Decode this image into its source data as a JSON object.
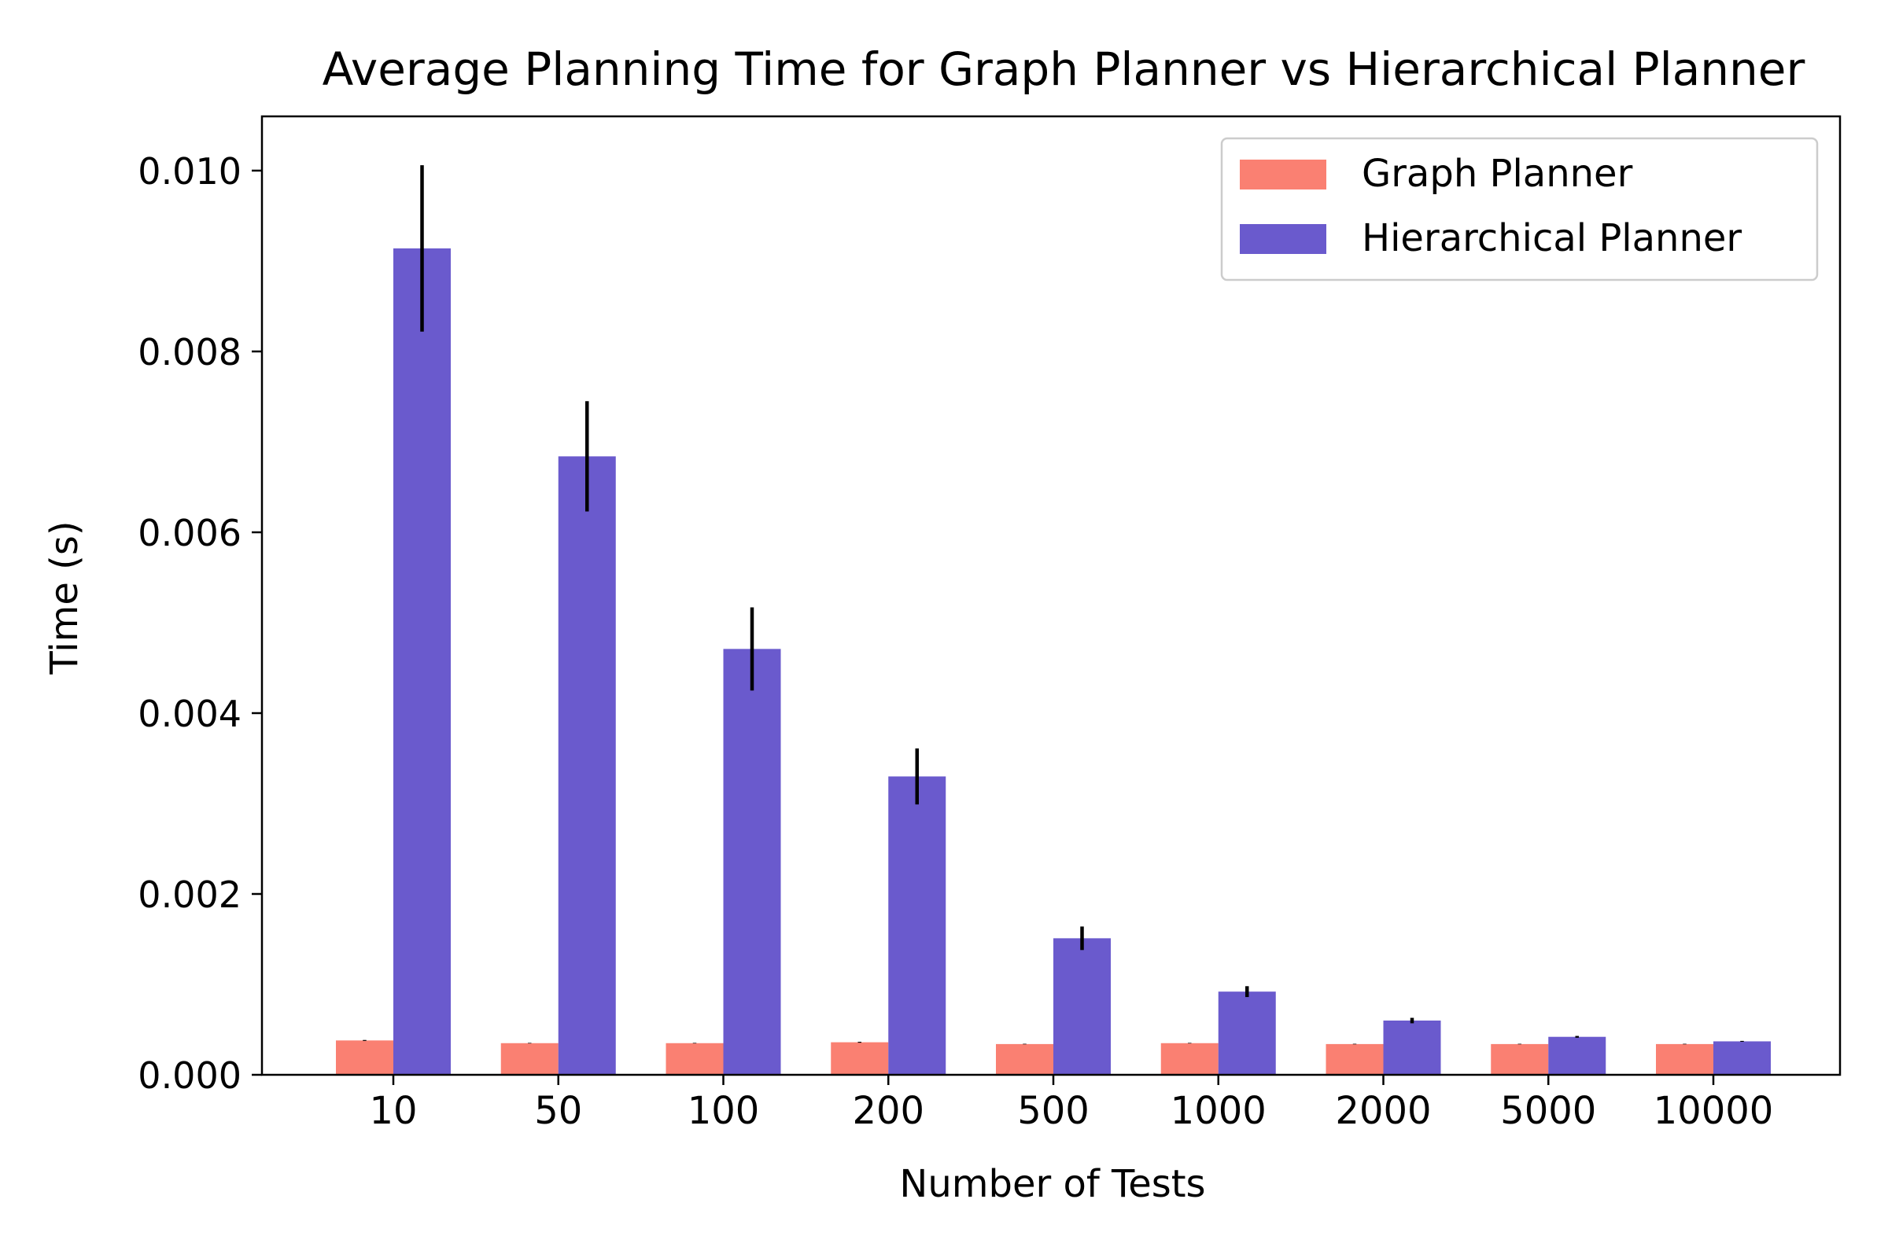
{
  "chart_data": {
    "type": "bar",
    "title": "Average Planning Time for Graph Planner vs Hierarchical Planner",
    "xlabel": "Number of Tests",
    "ylabel": "Time (s)",
    "categories": [
      "10",
      "50",
      "100",
      "200",
      "500",
      "1000",
      "2000",
      "5000",
      "10000"
    ],
    "ylim": [
      0,
      0.0106
    ],
    "yticks": [
      "0.000",
      "0.002",
      "0.004",
      "0.006",
      "0.008",
      "0.010"
    ],
    "ytick_values": [
      0,
      0.002,
      0.004,
      0.006,
      0.008,
      0.01
    ],
    "grid": false,
    "legend_position": "top-right",
    "series": [
      {
        "name": "Graph Planner",
        "color": "#FA8072",
        "values": [
          0.00038,
          0.00035,
          0.00035,
          0.00036,
          0.00034,
          0.00035,
          0.00034,
          0.00034,
          0.00034
        ],
        "errors": [
          5e-06,
          3e-06,
          3e-06,
          5e-06,
          3e-06,
          3e-06,
          3e-06,
          3e-06,
          3e-06
        ]
      },
      {
        "name": "Hierarchical Planner",
        "color": "#6A5ACD",
        "values": [
          0.00914,
          0.00684,
          0.00471,
          0.0033,
          0.00151,
          0.00092,
          0.0006,
          0.00042,
          0.00037
        ],
        "errors": [
          0.00092,
          0.00061,
          0.00046,
          0.00031,
          0.00013,
          6e-05,
          3e-05,
          1e-05,
          5e-06
        ]
      }
    ]
  }
}
